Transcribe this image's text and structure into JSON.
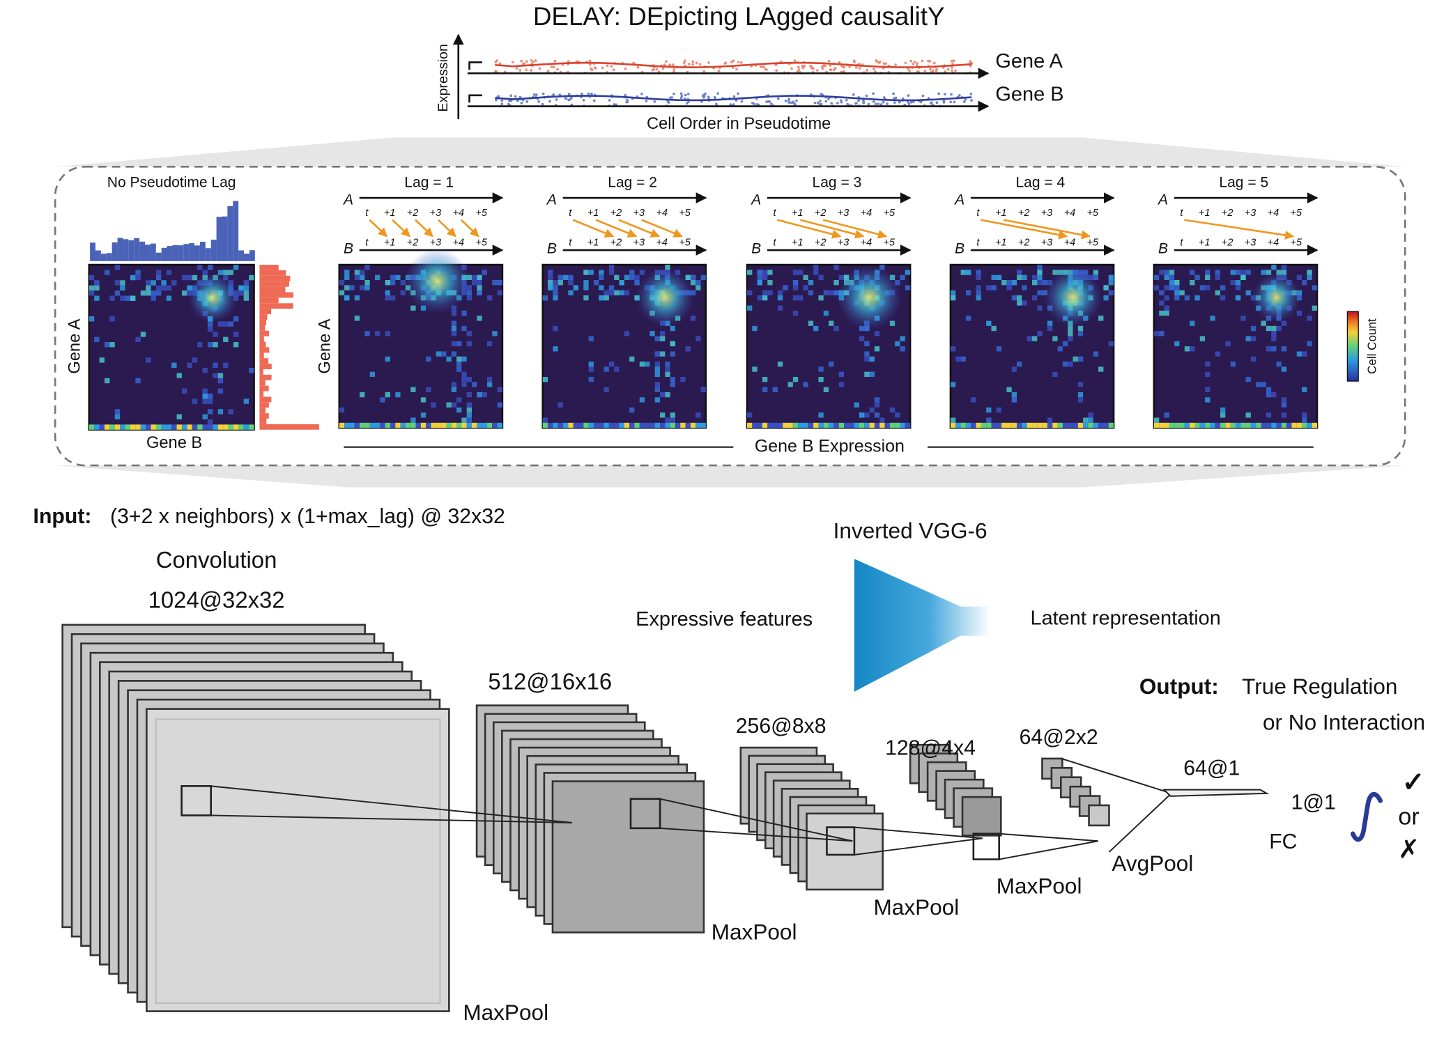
{
  "title": "DELAY: DEpicting LAgged causalitY",
  "expression_panel": {
    "y_label": "Expression",
    "gene_a": "Gene A",
    "gene_b": "Gene B",
    "x_label": "Cell Order in Pseudotime"
  },
  "lag_panels": {
    "no_lag_title": "No Pseudotime Lag",
    "gene_a": "Gene A",
    "gene_b": "Gene B",
    "row_a": "A",
    "row_b": "B",
    "time_labels": [
      "t",
      "+1",
      "+2",
      "+3",
      "+4",
      "+5"
    ],
    "lags": [
      "Lag = 1",
      "Lag = 2",
      "Lag = 3",
      "Lag = 4",
      "Lag = 5"
    ],
    "colorbar_label": "Cell Count",
    "x_label": "Gene B Expression"
  },
  "network": {
    "input_label": "Input:",
    "input_text": "(3+2 x neighbors) x (1+max_lag) @ 32x32",
    "architecture": "Inverted VGG-6",
    "left_label": "Expressive features",
    "right_label": "Latent representation",
    "layers": [
      {
        "name": "Convolution",
        "shape": "1024@32x32",
        "pool": "MaxPool"
      },
      {
        "shape": "512@16x16",
        "pool": "MaxPool"
      },
      {
        "shape": "256@8x8",
        "pool": "MaxPool"
      },
      {
        "shape": "128@4x4",
        "pool": "MaxPool"
      },
      {
        "shape": "64@2x2",
        "pool": "AvgPool"
      },
      {
        "shape": "64@1"
      },
      {
        "shape": "1@1",
        "name": "FC"
      }
    ],
    "output_label": "Output:",
    "output_lines": [
      "True Regulation",
      "or No Interaction"
    ],
    "outcomes": [
      "✓",
      "or",
      "✗"
    ]
  }
}
